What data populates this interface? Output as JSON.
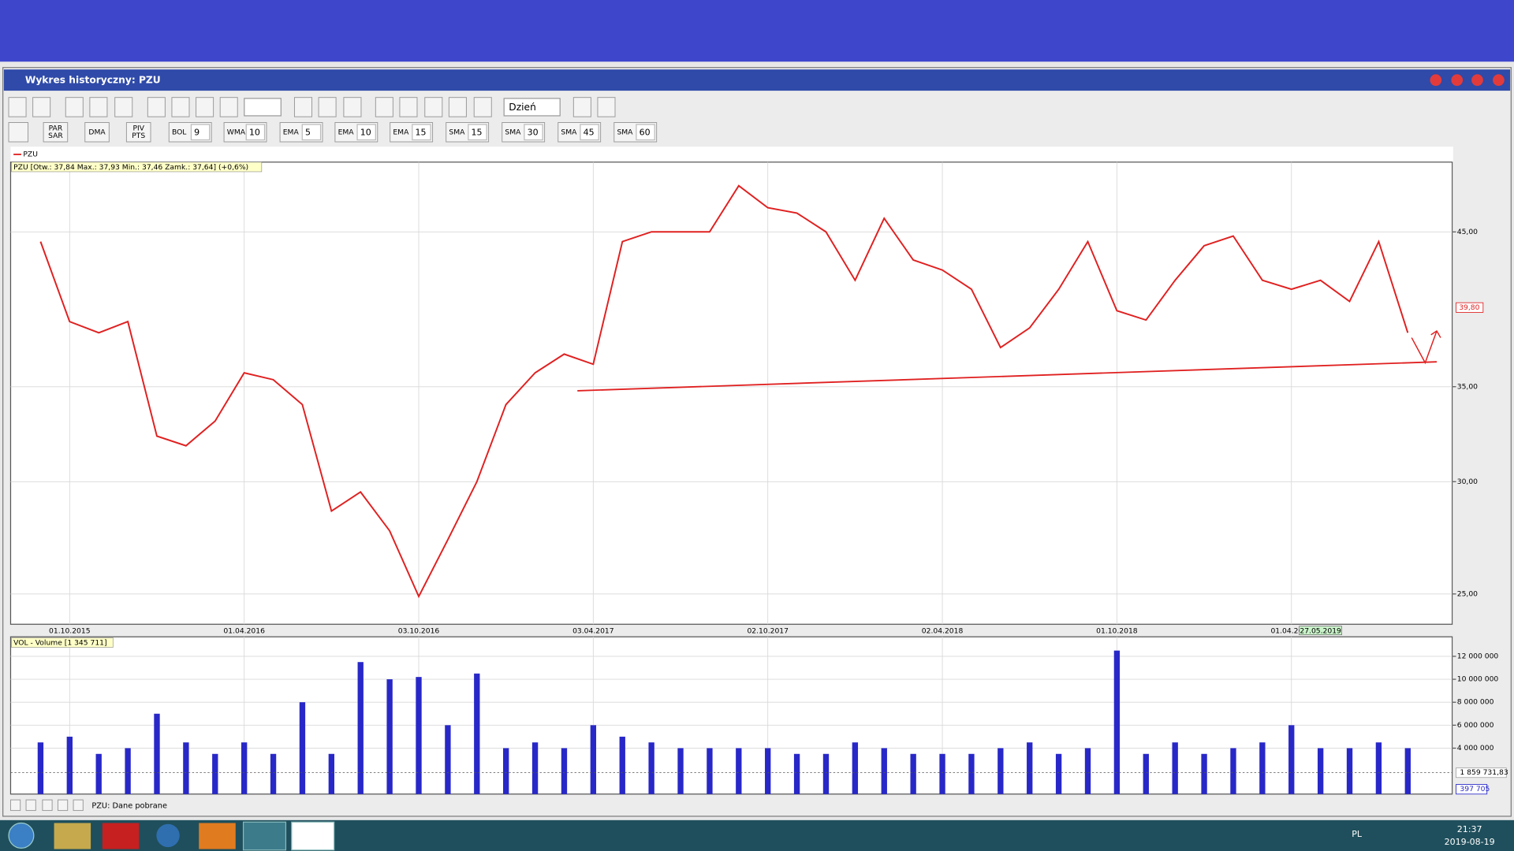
{
  "window": {
    "title": "Wykres historyczny: PZU",
    "status": "PZU: Dane pobrane"
  },
  "toolbar": {
    "period": "Dzień",
    "indicators": [
      {
        "label": [
          "PAR",
          "SAR"
        ]
      },
      {
        "label": [
          "DMA"
        ]
      },
      {
        "label": [
          "PIV",
          "PTS"
        ]
      },
      {
        "label": [
          "BOL"
        ],
        "param": 9
      },
      {
        "label": [
          "WMA"
        ],
        "param": 10
      },
      {
        "label": [
          "EMA"
        ],
        "param": 5
      },
      {
        "label": [
          "EMA"
        ],
        "param": 10
      },
      {
        "label": [
          "EMA"
        ],
        "param": 15
      },
      {
        "label": [
          "SMA"
        ],
        "param": 15
      },
      {
        "label": [
          "SMA"
        ],
        "param": 30
      },
      {
        "label": [
          "SMA"
        ],
        "param": 45
      },
      {
        "label": [
          "SMA"
        ],
        "param": 60
      }
    ]
  },
  "taskbar": {
    "language": "PL",
    "time": "21:37",
    "date": "2019-08-19"
  },
  "chart_data": [
    {
      "type": "line",
      "subtitle": "PZU [Otw.: 37,84  Max.: 37,93  Min.: 37,46  Zamk.: 37,64] (+0,6%)",
      "categories": [
        null,
        "01.10.2015",
        null,
        null,
        null,
        null,
        null,
        "01.04.2016",
        null,
        null,
        null,
        null,
        null,
        "03.10.2016",
        null,
        null,
        null,
        null,
        null,
        "03.04.2017",
        null,
        null,
        null,
        null,
        null,
        "02.10.2017",
        null,
        null,
        null,
        null,
        null,
        "02.04.2018",
        null,
        null,
        null,
        null,
        null,
        "01.10.2018",
        null,
        null,
        null,
        null,
        null,
        "01.04.2019",
        "27.05.2019",
        null,
        null,
        null
      ],
      "series": [
        {
          "name": "PZU",
          "color": "#e02020",
          "values": [
            44.3,
            38.9,
            38.2,
            38.9,
            32.3,
            31.8,
            33.1,
            35.8,
            35.4,
            34.0,
            28.6,
            29.5,
            27.7,
            24.9,
            27.3,
            30.0,
            34.0,
            35.8,
            36.9,
            36.3,
            44.3,
            45,
            45,
            45,
            48.5,
            46.8,
            46.4,
            45,
            41.6,
            46,
            43,
            42.3,
            41,
            37.3,
            38.5,
            41,
            44.3,
            39.6,
            39,
            41.6,
            44,
            44.7,
            41.6,
            41,
            41.6,
            40.2,
            44.3,
            38.2
          ]
        }
      ],
      "ylim": [
        23.8,
        50.4
      ],
      "yticks": [
        {
          "value": 25,
          "label": "25,00"
        },
        {
          "value": 30,
          "label": "30,00"
        },
        {
          "value": 35,
          "label": "35,00"
        },
        {
          "value": 45,
          "label": "45,00"
        }
      ],
      "log_scale": true,
      "grid": true,
      "last_value": {
        "value": 39.8,
        "label": "39,80"
      }
    },
    {
      "type": "bar",
      "title": "VOL - Volume [1 345 711]",
      "color": "#2828c8",
      "values": [
        4500000,
        5000000,
        3500000,
        4000000,
        7000000,
        4500000,
        3500000,
        4500000,
        3500000,
        8000000,
        3500000,
        11500000,
        10000000,
        10200000,
        6000000,
        10500000,
        4000000,
        4500000,
        4000000,
        6000000,
        5000000,
        4500000,
        4000000,
        4000000,
        4000000,
        4000000,
        3500000,
        3500000,
        4500000,
        4000000,
        3500000,
        3500000,
        3500000,
        4000000,
        4500000,
        3500000,
        4000000,
        12500000,
        3500000,
        4500000,
        3500000,
        4000000,
        4500000,
        6000000,
        4000000,
        4000000,
        4500000,
        4000000
      ],
      "ylim": [
        0,
        13700000
      ],
      "yticks": [
        {
          "value": 4000000,
          "label": "4 000 000"
        },
        {
          "value": 6000000,
          "label": "6 000 000"
        },
        {
          "value": 8000000,
          "label": "8 000 000"
        },
        {
          "value": 10000000,
          "label": "10 000 000"
        },
        {
          "value": 12000000,
          "label": "12 000 000"
        }
      ],
      "grid": true,
      "average": {
        "value": 1859731.83,
        "label": "1 859 731,83"
      },
      "last_value": {
        "value": 397705,
        "label": "397 705"
      }
    }
  ]
}
